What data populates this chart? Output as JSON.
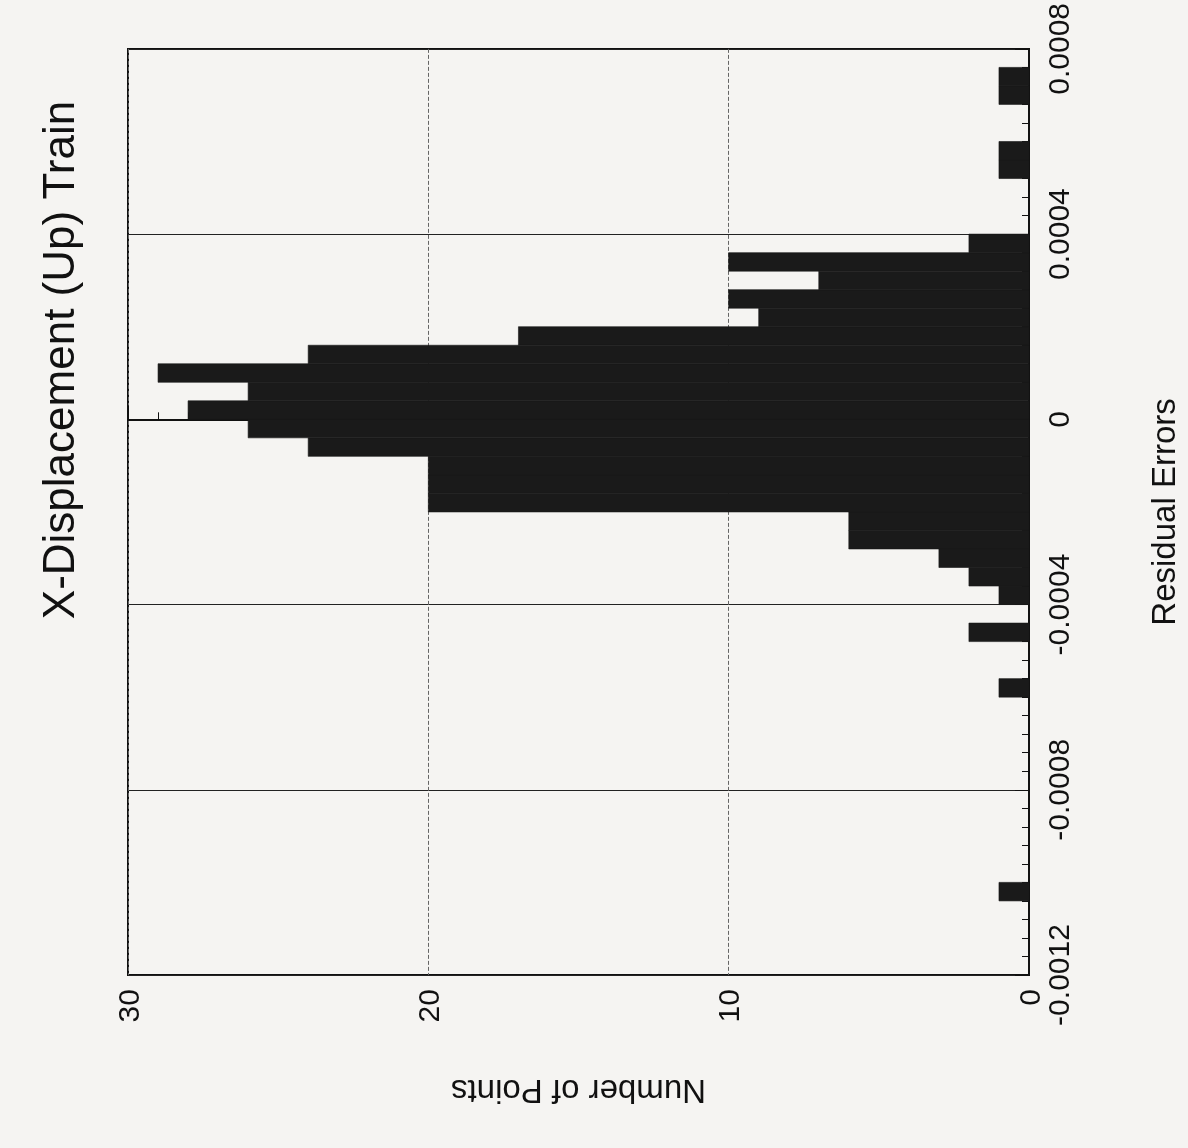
{
  "chart_data": {
    "type": "histogram",
    "orientation": "horizontal",
    "title": "X-Displacement (Up) Train",
    "xlabel": "Number of Points",
    "ylabel": "Residual Errors",
    "bins": [
      -0.0012,
      -0.00116,
      -0.00112,
      -0.00108,
      -0.00104,
      -0.001,
      -0.00096,
      -0.00092,
      -0.00088,
      -0.00084,
      -0.0008,
      -0.00076,
      -0.00072,
      -0.00068,
      -0.00064,
      -0.0006,
      -0.00056,
      -0.00052,
      -0.00048,
      -0.00044,
      -0.0004,
      -0.00036,
      -0.00032,
      -0.00028,
      -0.00024,
      -0.0002,
      -0.00016,
      -0.00012,
      -8e-05,
      -4e-05,
      0,
      4e-05,
      8e-05,
      0.00012,
      0.00016,
      0.0002,
      0.00024,
      0.00028,
      0.00032,
      0.00036,
      0.0004,
      0.00044,
      0.00048,
      0.00052,
      0.00056,
      0.0006,
      0.00064,
      0.00068,
      0.00072,
      0.00076,
      0.0008
    ],
    "values": [
      0,
      0,
      0,
      0,
      1,
      0,
      0,
      0,
      0,
      0,
      0,
      0,
      0,
      0,
      0,
      1,
      0,
      0,
      2,
      0,
      1,
      2,
      3,
      6,
      6,
      20,
      20,
      20,
      24,
      26,
      28,
      26,
      29,
      24,
      17,
      9,
      10,
      7,
      10,
      2,
      0,
      0,
      0,
      1,
      1,
      0,
      0,
      1,
      1,
      0
    ],
    "color": "#1a1a1a",
    "xlim": [
      30,
      0
    ],
    "xticks": [
      0,
      10,
      20,
      30
    ],
    "ylim": [
      -0.0012,
      0.0008
    ],
    "yticks": [
      -0.0012,
      -0.0008,
      -0.0004,
      0,
      0.0004,
      0.0008
    ],
    "grid": true
  }
}
